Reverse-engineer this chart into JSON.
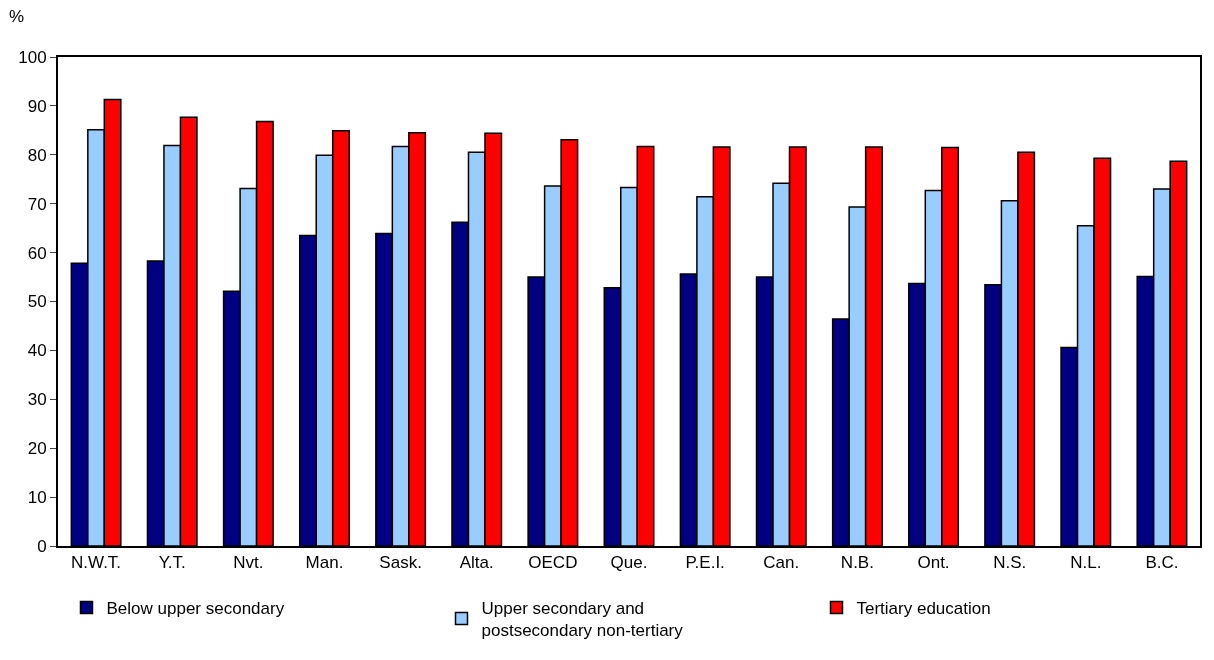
{
  "chart_data": {
    "type": "bar",
    "ylabel": "%",
    "categories": [
      "N.W.T.",
      "Y.T.",
      "Nvt.",
      "Man.",
      "Sask.",
      "Alta.",
      "OECD",
      "Que.",
      "P.E.I.",
      "Can.",
      "N.B.",
      "Ont.",
      "N.S.",
      "N.L.",
      "B.C."
    ],
    "series": [
      {
        "name": "Below upper secondary",
        "color": "#000080",
        "values": [
          57.8,
          58.3,
          52.1,
          63.5,
          63.9,
          66.2,
          55.0,
          52.8,
          55.6,
          55.0,
          46.4,
          53.7,
          53.4,
          40.6,
          55.1
        ]
      },
      {
        "name": "Upper secondary and postsecondary non-tertiary",
        "color": "#99ccff",
        "values": [
          85.1,
          81.9,
          73.1,
          79.9,
          81.7,
          80.5,
          73.6,
          73.3,
          71.4,
          74.2,
          69.3,
          72.7,
          70.6,
          65.5,
          73.0
        ]
      },
      {
        "name": "Tertiary education",
        "color": "#ff0000",
        "values": [
          91.3,
          87.7,
          86.8,
          84.9,
          84.5,
          84.4,
          83.1,
          81.7,
          81.6,
          81.6,
          81.6,
          81.5,
          80.5,
          79.3,
          78.7
        ]
      }
    ],
    "ylim": [
      0,
      100
    ],
    "yticks": [
      0,
      10,
      20,
      30,
      40,
      50,
      60,
      70,
      80,
      90,
      100
    ],
    "legend": "bottom"
  }
}
